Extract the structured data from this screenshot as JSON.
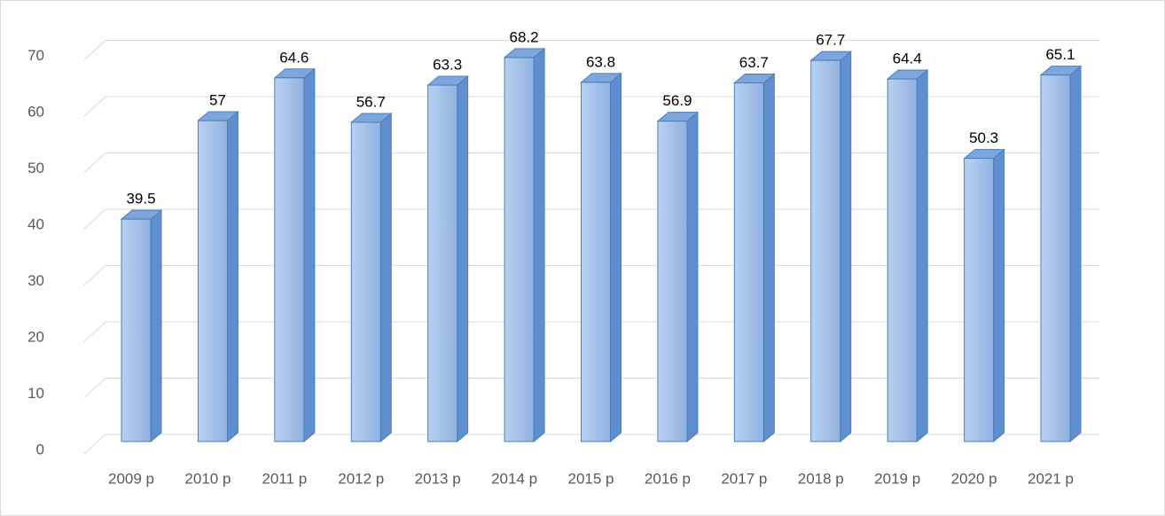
{
  "chart_data": {
    "type": "bar3d",
    "categories": [
      "2009 р",
      "2010 р",
      "2011 р",
      "2012 р",
      "2013 р",
      "2014 р",
      "2015 р",
      "2016 р",
      "2017 р",
      "2018 р",
      "2019 р",
      "2020 р",
      "2021 р"
    ],
    "values": [
      39.5,
      57,
      64.6,
      56.7,
      63.3,
      68.2,
      63.8,
      56.9,
      63.7,
      67.7,
      64.4,
      50.3,
      65.1
    ],
    "color": "#9dbfe8",
    "ylim": [
      0,
      70
    ],
    "yticks": [
      0,
      10,
      20,
      30,
      40,
      50,
      60,
      70
    ],
    "grid": true
  }
}
